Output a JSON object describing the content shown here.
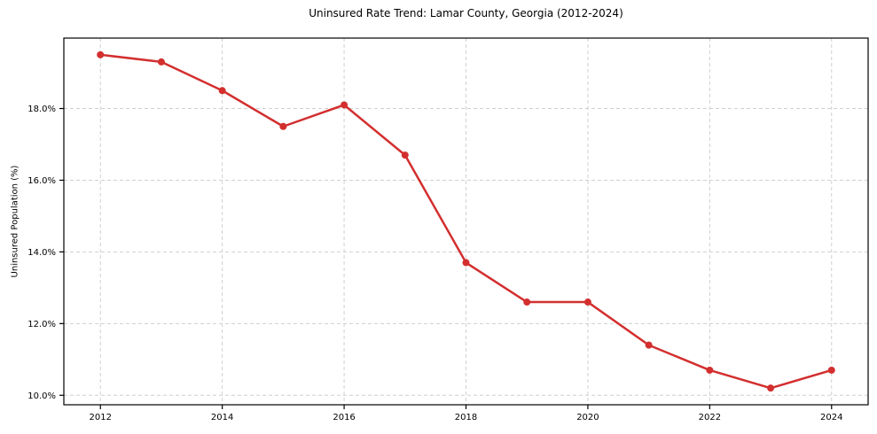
{
  "chart_data": {
    "type": "line",
    "title": "Uninsured Rate Trend: Lamar County, Georgia (2012-2024)",
    "xlabel": "",
    "ylabel": "Uninsured Population (%)",
    "x": [
      2012,
      2013,
      2014,
      2015,
      2016,
      2017,
      2018,
      2019,
      2020,
      2021,
      2022,
      2023,
      2024
    ],
    "values": [
      19.5,
      19.3,
      18.5,
      17.5,
      18.1,
      16.7,
      13.7,
      12.6,
      12.6,
      11.4,
      10.7,
      10.2,
      10.7
    ],
    "x_tick_labels": [
      "2012",
      "2014",
      "2016",
      "2018",
      "2020",
      "2022",
      "2024"
    ],
    "x_tick_values": [
      2012,
      2014,
      2016,
      2018,
      2020,
      2022,
      2024
    ],
    "y_tick_labels": [
      "10.0%",
      "12.0%",
      "14.0%",
      "16.0%",
      "18.0%"
    ],
    "y_tick_values": [
      10,
      12,
      14,
      16,
      18
    ],
    "xlim": [
      2011.4,
      2024.6
    ],
    "ylim": [
      9.735,
      19.965
    ],
    "grid": true,
    "grid_style": "dashed",
    "legend": "none",
    "line_color": "#d32f2f",
    "marker_color": "#d32f2f",
    "grid_color": "#cfcfcf",
    "spine_color": "#000000"
  }
}
